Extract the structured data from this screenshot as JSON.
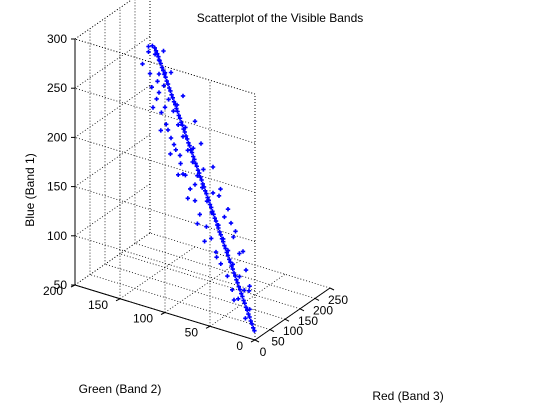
{
  "chart_data": {
    "type": "scatter3d",
    "title": "Scatterplot of the Visible Bands",
    "xlabel": "Red (Band 3)",
    "ylabel": "Green (Band 2)",
    "zlabel": "Blue (Band 1)",
    "xlim": [
      0,
      250
    ],
    "ylim": [
      0,
      200
    ],
    "zlim": [
      50,
      300
    ],
    "xticks": [
      "0",
      "50",
      "100",
      "150",
      "200",
      "250"
    ],
    "yticks": [
      "0",
      "50",
      "100",
      "150",
      "200"
    ],
    "zticks": [
      "50",
      "100",
      "150",
      "200",
      "250",
      "300"
    ],
    "grid": true,
    "marker": "+",
    "series": [
      {
        "color": "#0000ff",
        "points": [
          [
            4,
            2,
            58
          ],
          [
            6,
            4,
            60
          ],
          [
            8,
            6,
            63
          ],
          [
            10,
            8,
            65
          ],
          [
            12,
            10,
            68
          ],
          [
            14,
            12,
            70
          ],
          [
            16,
            14,
            73
          ],
          [
            18,
            16,
            75
          ],
          [
            20,
            18,
            78
          ],
          [
            22,
            20,
            80
          ],
          [
            24,
            22,
            83
          ],
          [
            26,
            24,
            85
          ],
          [
            28,
            26,
            88
          ],
          [
            30,
            28,
            90
          ],
          [
            32,
            30,
            93
          ],
          [
            34,
            32,
            95
          ],
          [
            36,
            34,
            98
          ],
          [
            38,
            36,
            100
          ],
          [
            40,
            38,
            103
          ],
          [
            42,
            40,
            105
          ],
          [
            44,
            42,
            108
          ],
          [
            46,
            44,
            110
          ],
          [
            48,
            46,
            113
          ],
          [
            50,
            48,
            115
          ],
          [
            52,
            50,
            118
          ],
          [
            54,
            52,
            120
          ],
          [
            56,
            54,
            123
          ],
          [
            58,
            56,
            125
          ],
          [
            60,
            58,
            128
          ],
          [
            62,
            60,
            130
          ],
          [
            64,
            62,
            133
          ],
          [
            66,
            64,
            135
          ],
          [
            68,
            66,
            138
          ],
          [
            70,
            68,
            140
          ],
          [
            72,
            70,
            143
          ],
          [
            74,
            72,
            145
          ],
          [
            76,
            74,
            148
          ],
          [
            78,
            76,
            150
          ],
          [
            80,
            78,
            153
          ],
          [
            82,
            80,
            155
          ],
          [
            84,
            82,
            158
          ],
          [
            86,
            84,
            160
          ],
          [
            88,
            86,
            163
          ],
          [
            90,
            88,
            165
          ],
          [
            92,
            90,
            168
          ],
          [
            94,
            92,
            170
          ],
          [
            96,
            94,
            173
          ],
          [
            98,
            96,
            175
          ],
          [
            100,
            98,
            178
          ],
          [
            102,
            100,
            180
          ],
          [
            104,
            102,
            183
          ],
          [
            106,
            104,
            185
          ],
          [
            108,
            106,
            188
          ],
          [
            110,
            108,
            190
          ],
          [
            112,
            110,
            193
          ],
          [
            114,
            112,
            195
          ],
          [
            116,
            114,
            198
          ],
          [
            118,
            116,
            200
          ],
          [
            120,
            118,
            203
          ],
          [
            122,
            120,
            205
          ],
          [
            124,
            122,
            208
          ],
          [
            126,
            124,
            210
          ],
          [
            128,
            126,
            213
          ],
          [
            130,
            128,
            215
          ],
          [
            132,
            130,
            218
          ],
          [
            134,
            132,
            220
          ],
          [
            136,
            134,
            223
          ],
          [
            138,
            136,
            225
          ],
          [
            140,
            138,
            228
          ],
          [
            142,
            140,
            230
          ],
          [
            144,
            142,
            233
          ],
          [
            146,
            144,
            235
          ],
          [
            148,
            146,
            238
          ],
          [
            150,
            148,
            240
          ],
          [
            152,
            150,
            243
          ],
          [
            154,
            152,
            245
          ],
          [
            156,
            154,
            248
          ],
          [
            158,
            156,
            250
          ],
          [
            160,
            158,
            253
          ],
          [
            162,
            160,
            255
          ],
          [
            164,
            162,
            258
          ],
          [
            166,
            164,
            260
          ],
          [
            168,
            166,
            262
          ],
          [
            170,
            168,
            264
          ],
          [
            10,
            14,
            66
          ],
          [
            18,
            12,
            74
          ],
          [
            22,
            26,
            80
          ],
          [
            30,
            22,
            88
          ],
          [
            26,
            34,
            86
          ],
          [
            38,
            30,
            98
          ],
          [
            34,
            42,
            96
          ],
          [
            46,
            40,
            106
          ],
          [
            42,
            52,
            104
          ],
          [
            54,
            48,
            116
          ],
          [
            50,
            60,
            112
          ],
          [
            62,
            56,
            124
          ],
          [
            58,
            68,
            122
          ],
          [
            70,
            64,
            134
          ],
          [
            66,
            76,
            130
          ],
          [
            78,
            74,
            142
          ],
          [
            74,
            86,
            138
          ],
          [
            86,
            82,
            150
          ],
          [
            82,
            94,
            148
          ],
          [
            94,
            90,
            160
          ],
          [
            90,
            102,
            156
          ],
          [
            102,
            98,
            168
          ],
          [
            98,
            110,
            166
          ],
          [
            110,
            106,
            178
          ],
          [
            106,
            118,
            174
          ],
          [
            118,
            114,
            186
          ],
          [
            114,
            126,
            184
          ],
          [
            126,
            122,
            196
          ],
          [
            122,
            134,
            192
          ],
          [
            134,
            130,
            204
          ],
          [
            130,
            142,
            202
          ],
          [
            142,
            138,
            214
          ],
          [
            138,
            150,
            210
          ],
          [
            150,
            146,
            222
          ],
          [
            146,
            158,
            220
          ],
          [
            158,
            154,
            232
          ],
          [
            154,
            166,
            228
          ],
          [
            166,
            162,
            240
          ],
          [
            20,
            30,
            78
          ],
          [
            36,
            18,
            92
          ],
          [
            40,
            56,
            110
          ],
          [
            56,
            36,
            116
          ],
          [
            48,
            72,
            120
          ],
          [
            72,
            48,
            126
          ],
          [
            60,
            84,
            132
          ],
          [
            84,
            62,
            140
          ],
          [
            76,
            100,
            150
          ],
          [
            100,
            80,
            156
          ],
          [
            92,
            116,
            166
          ],
          [
            116,
            96,
            172
          ],
          [
            108,
            130,
            180
          ],
          [
            130,
            112,
            186
          ],
          [
            124,
            146,
            196
          ],
          [
            146,
            126,
            200
          ],
          [
            140,
            160,
            212
          ],
          [
            160,
            140,
            216
          ],
          [
            60,
            100,
            178
          ],
          [
            80,
            110,
            190
          ],
          [
            70,
            90,
            168
          ],
          [
            90,
            120,
            196
          ],
          [
            100,
            130,
            206
          ],
          [
            120,
            140,
            222
          ],
          [
            130,
            150,
            232
          ],
          [
            140,
            155,
            240
          ],
          [
            150,
            150,
            248
          ],
          [
            160,
            160,
            256
          ],
          [
            40,
            20,
            86
          ],
          [
            60,
            30,
            100
          ],
          [
            80,
            40,
            112
          ],
          [
            100,
            55,
            124
          ],
          [
            120,
            70,
            138
          ],
          [
            140,
            85,
            150
          ],
          [
            160,
            100,
            164
          ],
          [
            180,
            120,
            178
          ],
          [
            70,
            50,
            140
          ],
          [
            90,
            70,
            158
          ],
          [
            130,
            110,
            214
          ],
          [
            150,
            130,
            230
          ],
          [
            170,
            150,
            244
          ],
          [
            175,
            160,
            262
          ],
          [
            168,
            170,
            266
          ],
          [
            155,
            170,
            268
          ],
          [
            162,
            165,
            260
          ],
          [
            170,
            175,
            258
          ],
          [
            145,
            165,
            244
          ],
          [
            150,
            175,
            250
          ]
        ]
      }
    ]
  }
}
